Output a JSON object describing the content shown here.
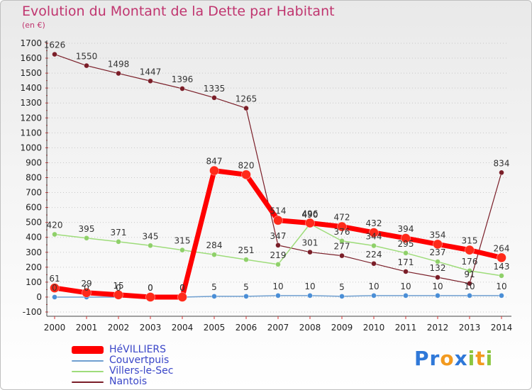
{
  "chart_data": {
    "type": "line",
    "title": "Evolution du Montant de la Dette par Habitant",
    "subtitle": "(en €)",
    "xlabel": "",
    "ylabel": "",
    "ylim": [
      -100,
      1700
    ],
    "ytick_step": 100,
    "grid": "horizontal dotted",
    "categories": [
      "2000",
      "2001",
      "2002",
      "2003",
      "2004",
      "2005",
      "2006",
      "2007",
      "2008",
      "2009",
      "2010",
      "2011",
      "2012",
      "2013",
      "2014"
    ],
    "series": [
      {
        "name": "Nantois",
        "color": "#7a1e28",
        "line_width": 1.2,
        "marker_radius": 3.5,
        "values": [
          1626,
          1550,
          1498,
          1447,
          1396,
          1335,
          1265,
          347,
          301,
          277,
          224,
          171,
          132,
          91,
          834
        ]
      },
      {
        "name": "Villers-le-Sec",
        "color": "#9edc7a",
        "marker_color": "#8fd06a",
        "line_width": 1.5,
        "marker_radius": 3.5,
        "values": [
          420,
          395,
          371,
          345,
          315,
          284,
          251,
          219,
          490,
          376,
          344,
          295,
          237,
          176,
          143
        ]
      },
      {
        "name": "Couvertpuis",
        "color": "#6f9fd0",
        "marker_color": "#4a8ed6",
        "line_width": 1.5,
        "marker_radius": 3.5,
        "values": [
          0,
          0,
          0,
          0,
          0,
          5,
          5,
          10,
          10,
          5,
          10,
          10,
          10,
          10,
          10
        ]
      },
      {
        "name": "HéVILLIERS",
        "color": "#ff0000",
        "marker_color": "#ff2a1a",
        "line_width": 7,
        "marker_radius": 6.5,
        "values": [
          61,
          29,
          15,
          0,
          0,
          847,
          820,
          514,
          496,
          472,
          432,
          394,
          354,
          315,
          264
        ]
      }
    ],
    "legend": [
      "HéVILLIERS",
      "Couvertpuis",
      "Villers-le-Sec",
      "Nantois"
    ],
    "legend_position": "bottom-left"
  },
  "brand": {
    "letters": [
      {
        "ch": "P",
        "color": "#2f78d8"
      },
      {
        "ch": "r",
        "color": "#2f78d8"
      },
      {
        "ch": "o",
        "color": "#f29a1f"
      },
      {
        "ch": "x",
        "color": "#2f78d8"
      },
      {
        "ch": "i",
        "color": "#8cc63f"
      },
      {
        "ch": "t",
        "color": "#f29a1f"
      },
      {
        "ch": "i",
        "color": "#8cc63f"
      }
    ]
  },
  "colors": {
    "title": "#c0356f",
    "axis_text": "#222222",
    "grid": "#c8c8c8",
    "label_text": "#333333"
  }
}
